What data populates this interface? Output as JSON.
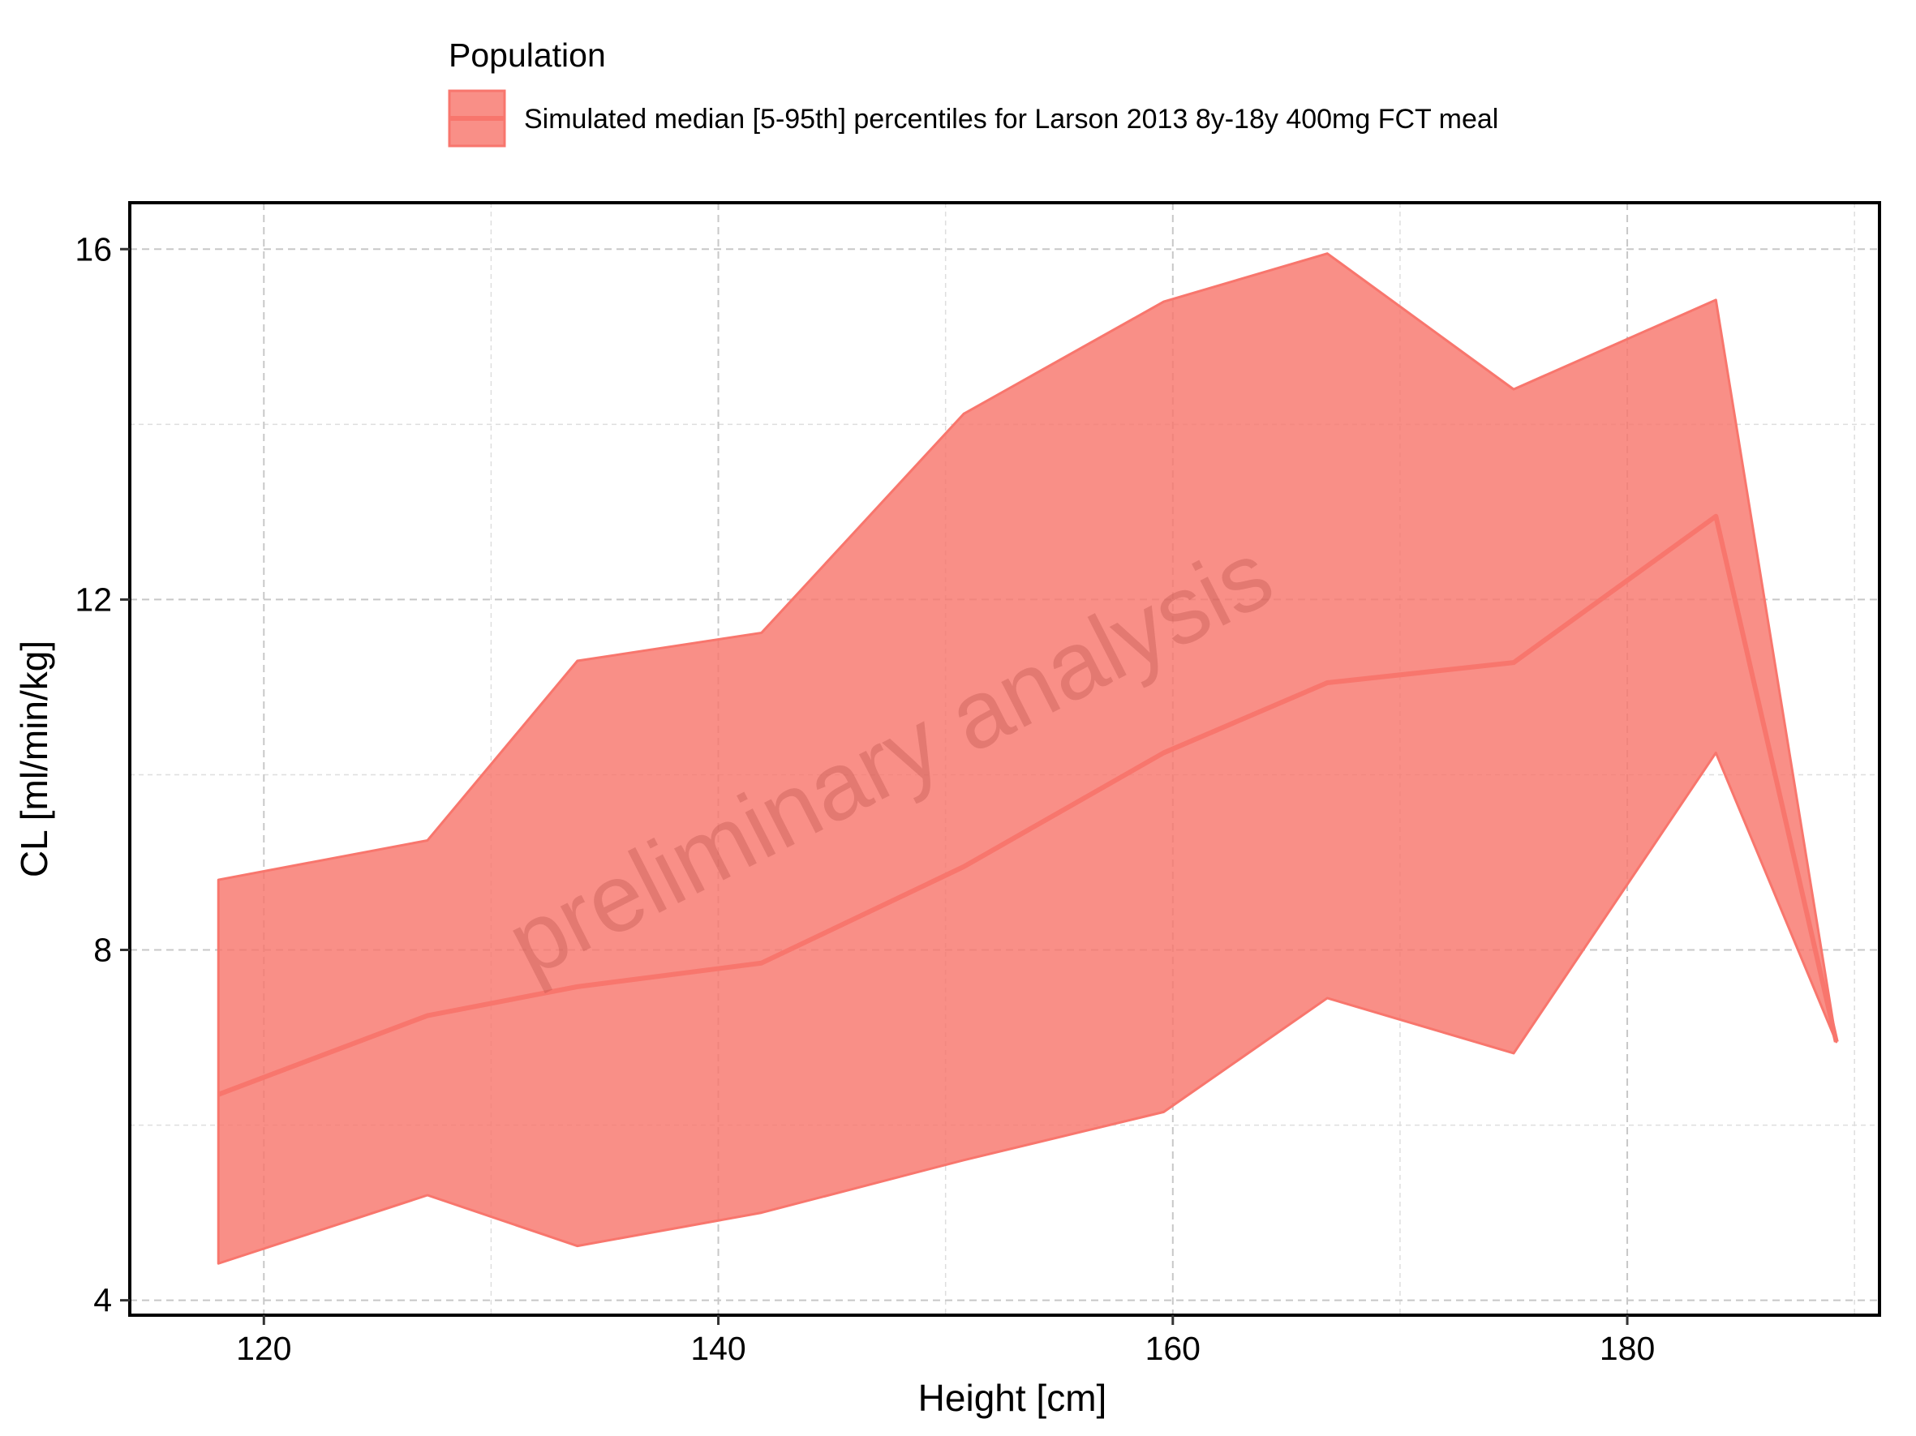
{
  "chart_data": {
    "type": "area",
    "legend_title": "Population",
    "legend_position": "top",
    "series": [
      {
        "name": "Simulated median [5-95th] percentiles for Larson 2013 8y-18y 400mg FCT meal",
        "x": [
          118,
          127.2,
          133.8,
          141.9,
          150.8,
          159.6,
          166.8,
          175,
          183.9,
          189.2
        ],
        "median": [
          6.35,
          7.25,
          7.58,
          7.85,
          8.95,
          10.25,
          11.05,
          11.28,
          12.95,
          6.95
        ],
        "p5": [
          4.42,
          5.2,
          4.62,
          5.0,
          5.6,
          6.15,
          7.45,
          6.82,
          10.25,
          6.95
        ],
        "p95": [
          8.8,
          9.25,
          11.3,
          11.62,
          14.12,
          15.4,
          15.95,
          14.4,
          15.42,
          6.95
        ]
      }
    ],
    "xlabel": "Height [cm]",
    "ylabel": "CL [ml/min/kg]",
    "xlim": [
      114.1,
      191.1
    ],
    "ylim": [
      3.83,
      16.53
    ],
    "x_ticks": [
      120,
      140,
      160,
      180
    ],
    "x_tick_labels": [
      "120",
      "140",
      "160",
      "180"
    ],
    "y_ticks": [
      4,
      8,
      12,
      16
    ],
    "y_tick_labels": [
      "4",
      "8",
      "12",
      "16"
    ],
    "grid": true,
    "annotation": "preliminary analysis"
  },
  "colors": {
    "band_fill": "#f8766d",
    "line": "#f8766d",
    "grid_major": "#c8c8c8",
    "grid_minor": "#dedede",
    "watermark": "#b44a44"
  }
}
